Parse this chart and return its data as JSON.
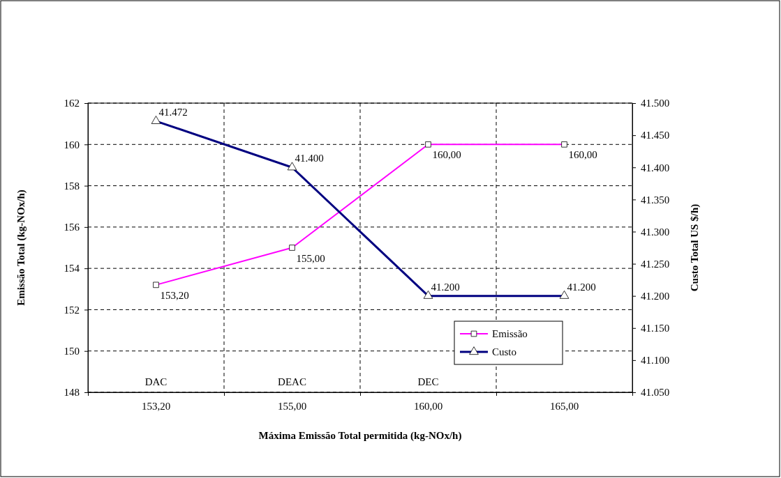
{
  "chart_data": {
    "type": "line",
    "xlabel": "Máxima Emissão Total permitida (kg-NOx/h)",
    "ylabel": "Emissão Total (kg-NOx/h)",
    "y2label": "Custo Total US $/h)",
    "categories": [
      "153,20",
      "155,00",
      "160,00",
      "165,00"
    ],
    "series": [
      {
        "name": "Emissão",
        "color": "#ff00ff",
        "marker": "square",
        "values": [
          153.2,
          155,
          160,
          160
        ],
        "value_labels": [
          "153,20",
          "155,00",
          "160,00",
          "160,00"
        ]
      },
      {
        "name": "Custo",
        "color": "#000080",
        "marker": "triangle",
        "axis": "y2",
        "values": [
          41472,
          41400,
          41200,
          41200
        ],
        "value_labels": [
          "41.472",
          "41.400",
          "41.200",
          "41.200"
        ]
      }
    ],
    "ylim": [
      148,
      162
    ],
    "yticks": [
      148,
      150,
      152,
      154,
      156,
      158,
      160,
      162
    ],
    "y2lim": [
      41050,
      41500
    ],
    "y2ticks": [
      {
        "value": 41050,
        "label": "41.050"
      },
      {
        "value": 41100,
        "label": "41.100"
      },
      {
        "value": 41150,
        "label": "41.150"
      },
      {
        "value": 41200,
        "label": "41.200"
      },
      {
        "value": 41250,
        "label": "41.250"
      },
      {
        "value": 41300,
        "label": "41.300"
      },
      {
        "value": 41350,
        "label": "41.350"
      },
      {
        "value": 41400,
        "label": "41.400"
      },
      {
        "value": 41450,
        "label": "41.450"
      },
      {
        "value": 41500,
        "label": "41.500"
      }
    ],
    "annotations": [
      "DAC",
      "DEAC",
      "DEC"
    ],
    "grid": true,
    "legend": "bottom right",
    "line_style": "solid"
  }
}
